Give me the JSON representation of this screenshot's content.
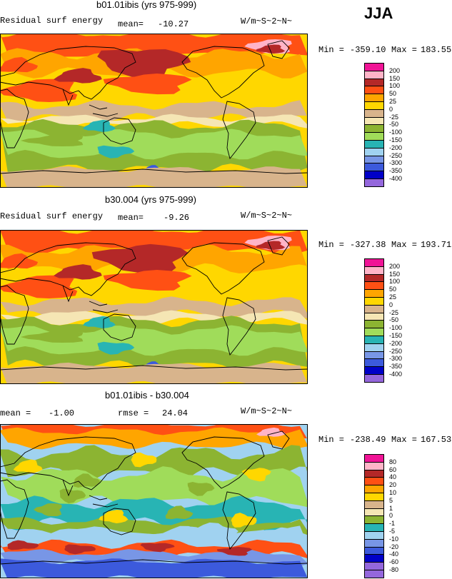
{
  "season": "JJA",
  "colors": {
    "neg400": "#9467dc",
    "neg350": "#0000c8",
    "neg300": "#3c5adc",
    "neg250": "#7896e6",
    "neg200": "#a0d2f0",
    "neg150": "#28b4b4",
    "neg100": "#a0dc5a",
    "neg50": "#8cb432",
    "neg25": "#f5e6b4",
    "zero": "#d8b48c",
    "pos25": "#ffd700",
    "pos50": "#ffa500",
    "pos100": "#ff5014",
    "pos150": "#b42828",
    "pos200": "#ffb4c8",
    "pos250": "#f01496",
    "land_line": "#000000"
  },
  "chart_data": [
    {
      "type": "heatmap",
      "title": "b01.01ibis (yrs 975-999)",
      "variable": "Residual surf energy",
      "mean_label": "mean=",
      "mean": "-10.27",
      "units": "W/m~S~2~N~",
      "min_label": "Min =",
      "min": "-359.10",
      "max_label": "Max =",
      "max": "183.55",
      "legend_levels": [
        "200",
        "150",
        "100",
        "50",
        "25",
        "0",
        "-25",
        "-50",
        "-100",
        "-150",
        "-200",
        "-250",
        "-300",
        "-350",
        "-400"
      ]
    },
    {
      "type": "heatmap",
      "title": "b30.004 (yrs 975-999)",
      "variable": "Residual surf energy",
      "mean_label": "mean=",
      "mean": "-9.26",
      "units": "W/m~S~2~N~",
      "min_label": "Min =",
      "min": "-327.38",
      "max_label": "Max =",
      "max": "193.71",
      "legend_levels": [
        "200",
        "150",
        "100",
        "50",
        "25",
        "0",
        "-25",
        "-50",
        "-100",
        "-150",
        "-200",
        "-250",
        "-300",
        "-350",
        "-400"
      ]
    },
    {
      "type": "heatmap",
      "title": "b01.01ibis - b30.004",
      "variable": "",
      "mean_label": "mean =",
      "mean": "-1.00",
      "rmse_label": "rmse =",
      "rmse": "24.04",
      "units": "W/m~S~2~N~",
      "min_label": "Min =",
      "min": "-238.49",
      "max_label": "Max =",
      "max": "167.53",
      "legend_levels": [
        "80",
        "60",
        "40",
        "20",
        "10",
        "5",
        "1",
        "0",
        "-1",
        "-5",
        "-10",
        "-20",
        "-40",
        "-60",
        "-80"
      ]
    }
  ]
}
